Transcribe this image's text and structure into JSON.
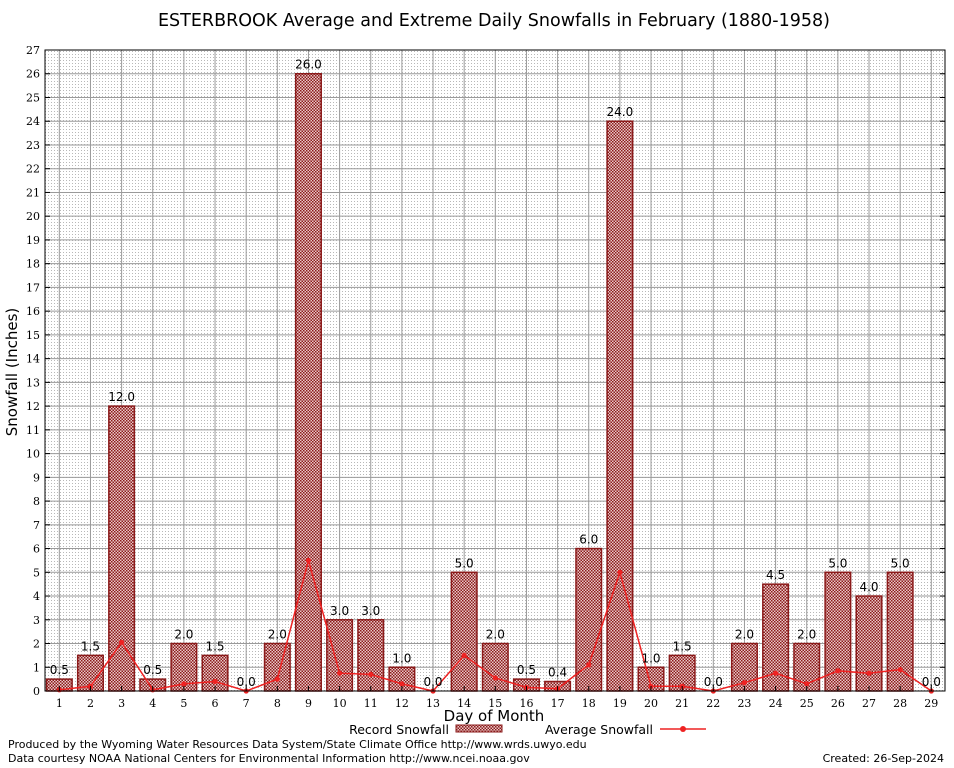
{
  "chart_data": {
    "type": "bar",
    "title": "ESTERBROOK Average and Extreme Daily Snowfalls in February (1880-1958)",
    "xlabel": "Day of Month",
    "ylabel": "Snowfall (Inches)",
    "ylim": [
      0,
      27
    ],
    "grid": true,
    "categories": [
      "1",
      "2",
      "3",
      "4",
      "5",
      "6",
      "7",
      "8",
      "9",
      "10",
      "11",
      "12",
      "13",
      "14",
      "15",
      "16",
      "17",
      "18",
      "19",
      "20",
      "21",
      "22",
      "23",
      "24",
      "25",
      "26",
      "27",
      "28",
      "29"
    ],
    "series": [
      {
        "name": "Record Snowfall",
        "kind": "bar",
        "color": "#8b1a1a",
        "values": [
          0.5,
          1.5,
          12.0,
          0.5,
          2.0,
          1.5,
          0.0,
          2.0,
          26.0,
          3.0,
          3.0,
          1.0,
          0.0,
          5.0,
          2.0,
          0.5,
          0.4,
          6.0,
          24.0,
          1.0,
          1.5,
          0.0,
          2.0,
          4.5,
          2.0,
          5.0,
          4.0,
          5.0,
          0.0
        ],
        "labels": [
          "0.5",
          "1.5",
          "12.0",
          "0.5",
          "2.0",
          "1.5",
          "0.0",
          "2.0",
          "26.0",
          "3.0",
          "3.0",
          "1.0",
          "0.0",
          "5.0",
          "2.0",
          "0.5",
          "0.4",
          "6.0",
          "24.0",
          "1.0",
          "1.5",
          "0.0",
          "2.0",
          "4.5",
          "2.0",
          "5.0",
          "4.0",
          "5.0",
          "0.0"
        ]
      },
      {
        "name": "Average Snowfall",
        "kind": "line",
        "color": "#ee2222",
        "values": [
          0.05,
          0.2,
          2.05,
          0.05,
          0.3,
          0.4,
          0.0,
          0.5,
          5.5,
          0.75,
          0.7,
          0.3,
          0.0,
          1.5,
          0.55,
          0.15,
          0.1,
          1.1,
          5.0,
          0.2,
          0.2,
          0.0,
          0.35,
          0.75,
          0.3,
          0.85,
          0.75,
          0.9,
          0.0
        ]
      }
    ],
    "legend": {
      "placement": "bottom"
    }
  },
  "footer": {
    "produced_by": "Produced by the Wyoming Water Resources Data System/State Climate Office http://www.wrds.uwyo.edu",
    "data_courtesy": "Data courtesy NOAA National Centers for Environmental Information http://www.ncei.noaa.gov",
    "created": "Created:  26-Sep-2024"
  }
}
